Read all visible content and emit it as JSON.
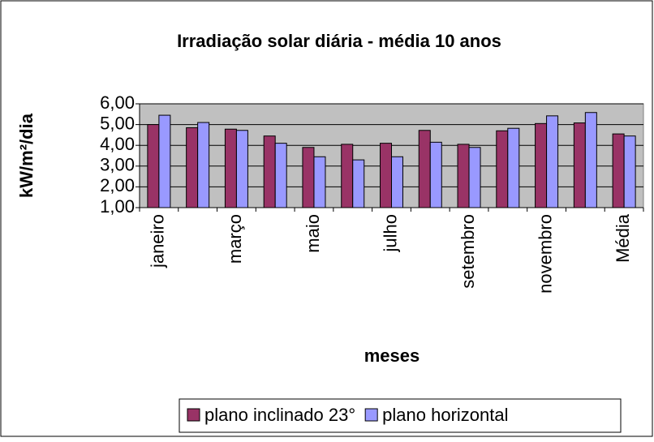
{
  "chart_data": {
    "type": "bar",
    "title": "Irradiação solar diária - média 10 anos",
    "x_label": "meses",
    "y_label": "kW/m²/dia",
    "categories": [
      "janeiro",
      null,
      "março",
      null,
      "maio",
      null,
      "julho",
      null,
      "setembro",
      null,
      "novembro",
      null,
      "Média"
    ],
    "series": [
      {
        "name": "plano inclinado 23°",
        "color": "#993366",
        "values": [
          5.0,
          4.85,
          4.78,
          4.45,
          3.9,
          4.05,
          4.1,
          4.72,
          4.05,
          4.7,
          5.05,
          5.08,
          4.55
        ]
      },
      {
        "name": "plano horizontal",
        "color": "#9999ff",
        "values": [
          5.45,
          5.1,
          4.72,
          4.1,
          3.45,
          3.3,
          3.45,
          4.15,
          3.9,
          4.82,
          5.42,
          5.58,
          4.45
        ]
      }
    ],
    "ylim": [
      1,
      6
    ],
    "yticks": [
      {
        "value": 1,
        "label": "1,00"
      },
      {
        "value": 2,
        "label": "2,00"
      },
      {
        "value": 3,
        "label": "3,00"
      },
      {
        "value": 4,
        "label": "4,00"
      },
      {
        "value": 5,
        "label": "5,00"
      },
      {
        "value": 6,
        "label": "6,00"
      }
    ],
    "grid": true,
    "legend": "bottom"
  }
}
